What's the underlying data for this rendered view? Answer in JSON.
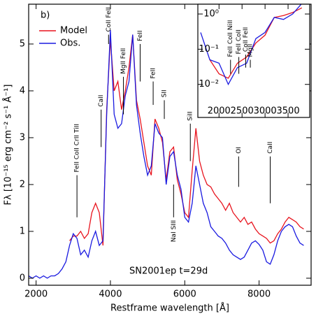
{
  "chart_data": [
    {
      "type": "line",
      "xlabel": "Restframe wavelength [Å]",
      "ylabel": "Fλ [10⁻¹⁵ erg cm⁻² s⁻¹ Å⁻¹]",
      "panel_label": "b)",
      "annotation": "SN2001ep t=29d",
      "xlim": [
        1800,
        9400
      ],
      "ylim": [
        -0.15,
        5.85
      ],
      "xticks": [
        2000,
        4000,
        6000,
        8000
      ],
      "yticks": [
        0,
        1,
        2,
        3,
        4,
        5
      ],
      "x": [
        1800,
        1900,
        2000,
        2100,
        2200,
        2300,
        2400,
        2500,
        2600,
        2700,
        2800,
        2900,
        3000,
        3100,
        3200,
        3300,
        3400,
        3500,
        3600,
        3700,
        3800,
        3900,
        4000,
        4100,
        4200,
        4300,
        4400,
        4500,
        4600,
        4700,
        4800,
        4900,
        5000,
        5100,
        5200,
        5300,
        5400,
        5500,
        5600,
        5700,
        5800,
        5900,
        6000,
        6100,
        6200,
        6300,
        6400,
        6500,
        6600,
        6700,
        6800,
        6900,
        7000,
        7100,
        7200,
        7300,
        7400,
        7500,
        7600,
        7700,
        7800,
        7900,
        8000,
        8100,
        8200,
        8300,
        8400,
        8500,
        8600,
        8700,
        8800,
        8900,
        9000,
        9100,
        9200
      ],
      "series": [
        {
          "name": "Model",
          "color": "#e8141e",
          "values": [
            null,
            null,
            null,
            null,
            null,
            null,
            null,
            null,
            null,
            null,
            null,
            0.8,
            0.9,
            0.9,
            1.0,
            0.85,
            0.95,
            1.4,
            1.6,
            1.4,
            0.7,
            3.6,
            5.1,
            4.0,
            4.2,
            3.6,
            4.0,
            4.5,
            5.2,
            3.8,
            3.4,
            2.9,
            2.4,
            2.2,
            3.4,
            3.2,
            2.9,
            2.1,
            2.7,
            2.8,
            2.1,
            1.8,
            1.4,
            1.3,
            2.3,
            3.2,
            2.5,
            2.2,
            2.0,
            1.95,
            1.8,
            1.7,
            1.6,
            1.45,
            1.6,
            1.4,
            1.3,
            1.2,
            1.3,
            1.15,
            1.2,
            1.05,
            0.95,
            0.9,
            0.85,
            0.75,
            0.8,
            0.95,
            1.05,
            1.2,
            1.3,
            1.25,
            1.2,
            1.1,
            1.05
          ]
        },
        {
          "name": "Obs.",
          "color": "#1a1ae0",
          "values": [
            0.05,
            0.0,
            0.05,
            0.0,
            0.05,
            0.0,
            0.05,
            0.05,
            0.1,
            0.2,
            0.35,
            0.7,
            0.95,
            0.85,
            0.5,
            0.6,
            0.45,
            0.8,
            1.0,
            0.7,
            0.8,
            3.5,
            5.3,
            3.5,
            3.2,
            3.3,
            3.9,
            4.2,
            5.2,
            3.7,
            3.1,
            2.6,
            2.2,
            2.4,
            3.3,
            3.1,
            3.0,
            2.0,
            2.6,
            2.7,
            2.2,
            1.9,
            1.3,
            1.2,
            1.6,
            2.4,
            2.0,
            1.6,
            1.4,
            1.1,
            1.0,
            0.9,
            0.85,
            0.75,
            0.6,
            0.5,
            0.45,
            0.4,
            0.45,
            0.6,
            0.75,
            0.8,
            0.72,
            0.6,
            0.35,
            0.3,
            0.5,
            0.8,
            1.0,
            1.1,
            1.15,
            1.1,
            0.9,
            0.75,
            0.7
          ]
        }
      ],
      "line_ids": [
        {
          "text": "FeII CoII CrII TiII",
          "x": 3100,
          "y": [
            1.3,
            2.2
          ]
        },
        {
          "text": "CaII",
          "x": 3750,
          "y": [
            2.8,
            3.6
          ]
        },
        {
          "text": "CoII FeII",
          "x": 3950,
          "y": [
            5.0,
            5.2
          ]
        },
        {
          "text": "MgII FeII",
          "x": 4350,
          "y": [
            3.5,
            4.3
          ]
        },
        {
          "text": "FeII",
          "x": 4800,
          "y": [
            4.2,
            5.0
          ]
        },
        {
          "text": "FeII",
          "x": 5150,
          "y": [
            3.7,
            4.2
          ]
        },
        {
          "text": "SII",
          "x": 5450,
          "y": [
            3.4,
            3.8
          ]
        },
        {
          "text": "NaI SIII",
          "x": 5700,
          "y": [
            1.3,
            2.0
          ],
          "below": true
        },
        {
          "text": "SiII",
          "x": 6150,
          "y": [
            2.5,
            3.3
          ]
        },
        {
          "text": "OI",
          "x": 7450,
          "y": [
            1.95,
            2.6
          ]
        },
        {
          "text": "CaII",
          "x": 8300,
          "y": [
            1.6,
            2.6
          ]
        }
      ]
    },
    {
      "type": "line",
      "log_y": true,
      "xlim": [
        1540,
        3970
      ],
      "ylim": [
        0.00115,
        1.9
      ],
      "xticks": [
        2000,
        2500,
        3000,
        3500
      ],
      "yticks": [
        {
          "value": 0.01,
          "label": "10⁻²"
        },
        {
          "value": 0.1,
          "label": "10⁻¹"
        },
        {
          "value": 1,
          "label": "10⁰"
        }
      ],
      "x": [
        1600,
        1800,
        2000,
        2200,
        2400,
        2600,
        2800,
        3000,
        3200,
        3400,
        3600,
        3800
      ],
      "series": [
        {
          "name": "Model",
          "color": "#e8141e",
          "values": [
            null,
            0.05,
            0.02,
            0.015,
            0.04,
            0.06,
            0.15,
            0.25,
            0.8,
            0.9,
            1.1,
            1.5
          ]
        },
        {
          "name": "Obs.",
          "color": "#1a1ae0",
          "values": [
            0.3,
            0.05,
            0.04,
            0.01,
            0.03,
            0.04,
            0.2,
            0.3,
            0.8,
            0.7,
            1.0,
            2.0
          ]
        }
      ],
      "line_ids": [
        {
          "text": "FeII CoII NiII",
          "x": 2250,
          "y": [
            0.02,
            0.05
          ]
        },
        {
          "text": "FeII CoII",
          "x": 2430,
          "y": [
            0.02,
            0.06
          ]
        },
        {
          "text": "CoII FeII",
          "x": 2580,
          "y": [
            0.03,
            0.07
          ]
        },
        {
          "text": "MgII",
          "x": 2680,
          "y": [
            0.03,
            0.05
          ]
        }
      ]
    }
  ]
}
